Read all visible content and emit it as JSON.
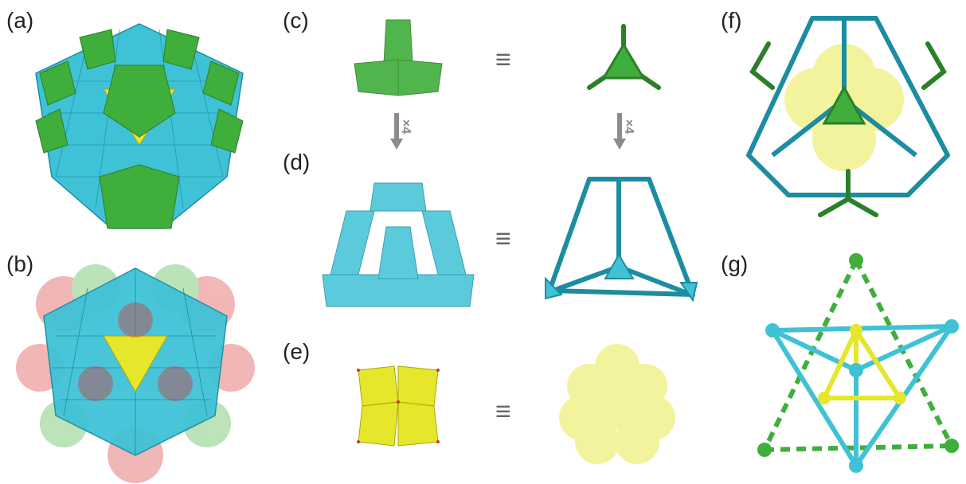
{
  "labels": {
    "a": "(a)",
    "b": "(b)",
    "c": "(c)",
    "d": "(d)",
    "e": "(e)",
    "f": "(f)",
    "g": "(g)"
  },
  "equivalence_symbol": "≡",
  "multiplier": "×4",
  "colors": {
    "green": "#3fae3a",
    "green_dark": "#2c7f2a",
    "cyan": "#3fc2d6",
    "cyan_dark": "#1c8da1",
    "yellow": "#e6e62a",
    "yellow_dark": "#a8a810",
    "red_atom": "#d93030",
    "arrow_gray": "#8c8c8c",
    "text": "#222222"
  }
}
